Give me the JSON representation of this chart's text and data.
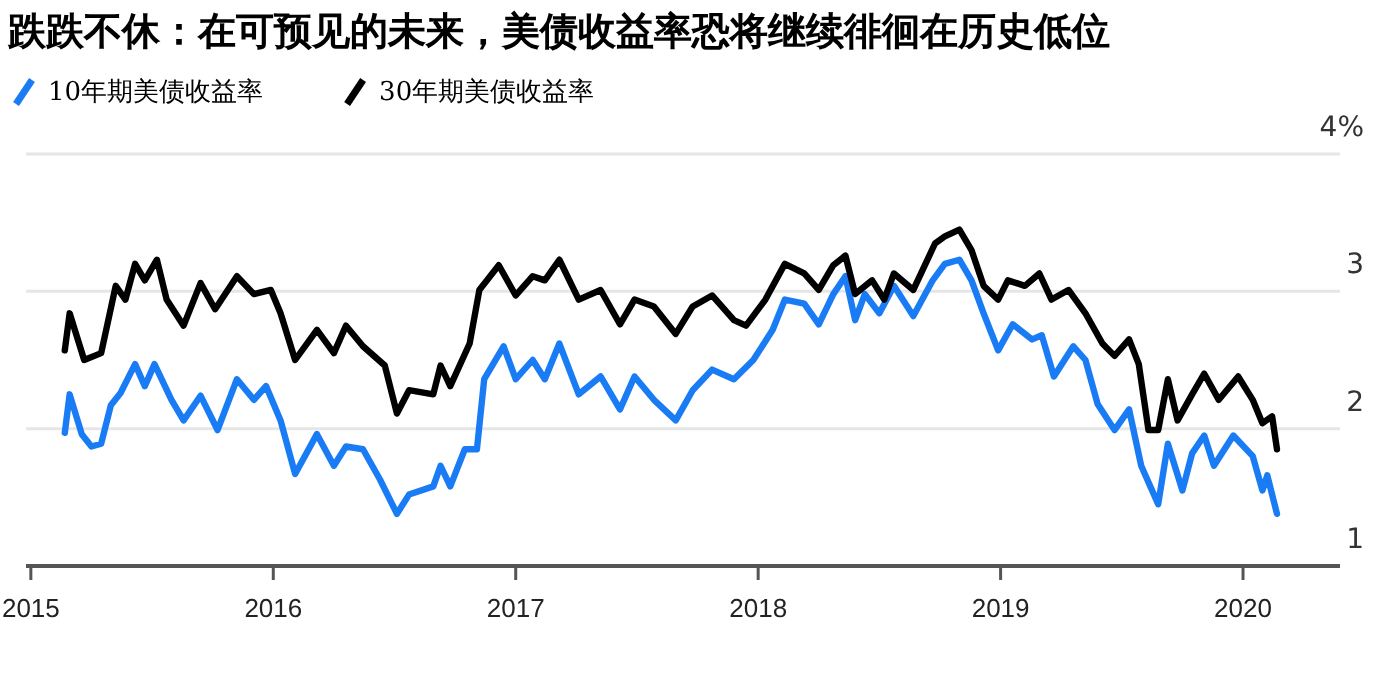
{
  "chart_data": {
    "type": "line",
    "title": "跌跌不休：在可预见的未来，美债收益率恐将继续徘徊在历史低位",
    "xlim": [
      2014.98,
      2020.4
    ],
    "xticks": [
      2015,
      2016,
      2017,
      2018,
      2019,
      2020
    ],
    "ylim": [
      1,
      4
    ],
    "yticks": [
      1,
      2,
      3,
      {
        "value": 4,
        "label": "4%"
      }
    ],
    "grid": "y",
    "legend": "top left",
    "marker": "none",
    "line_style": "solid",
    "series": [
      {
        "name": "10年期美债收益率",
        "color": "#1a7cf5",
        "x": [
          2015.14,
          2015.16,
          2015.21,
          2015.25,
          2015.29,
          2015.33,
          2015.37,
          2015.43,
          2015.47,
          2015.51,
          2015.58,
          2015.63,
          2015.7,
          2015.77,
          2015.85,
          2015.92,
          2015.97,
          2016.03,
          2016.09,
          2016.18,
          2016.25,
          2016.3,
          2016.37,
          2016.44,
          2016.51,
          2016.56,
          2016.66,
          2016.69,
          2016.73,
          2016.79,
          2016.84,
          2016.87,
          2016.95,
          2017.0,
          2017.07,
          2017.12,
          2017.18,
          2017.26,
          2017.35,
          2017.43,
          2017.49,
          2017.57,
          2017.66,
          2017.73,
          2017.81,
          2017.9,
          2017.98,
          2018.06,
          2018.11,
          2018.19,
          2018.25,
          2018.31,
          2018.36,
          2018.4,
          2018.44,
          2018.5,
          2018.56,
          2018.64,
          2018.72,
          2018.77,
          2018.83,
          2018.88,
          2018.93,
          2018.99,
          2019.05,
          2019.13,
          2019.17,
          2019.22,
          2019.3,
          2019.35,
          2019.4,
          2019.47,
          2019.53,
          2019.58,
          2019.65,
          2019.69,
          2019.75,
          2019.79,
          2019.84,
          2019.88,
          2019.96,
          2020.04,
          2020.08,
          2020.1,
          2020.14
        ],
        "values": [
          1.97,
          2.25,
          1.96,
          1.87,
          1.89,
          2.17,
          2.26,
          2.47,
          2.31,
          2.47,
          2.21,
          2.06,
          2.24,
          1.99,
          2.36,
          2.21,
          2.31,
          2.06,
          1.67,
          1.96,
          1.73,
          1.87,
          1.85,
          1.63,
          1.38,
          1.52,
          1.58,
          1.73,
          1.58,
          1.85,
          1.85,
          2.36,
          2.6,
          2.36,
          2.5,
          2.36,
          2.62,
          2.25,
          2.38,
          2.14,
          2.38,
          2.21,
          2.06,
          2.28,
          2.43,
          2.36,
          2.5,
          2.72,
          2.94,
          2.91,
          2.76,
          2.98,
          3.11,
          2.79,
          2.98,
          2.84,
          3.04,
          2.82,
          3.08,
          3.2,
          3.23,
          3.08,
          2.84,
          2.57,
          2.76,
          2.65,
          2.68,
          2.38,
          2.6,
          2.5,
          2.18,
          1.99,
          2.14,
          1.73,
          1.45,
          1.89,
          1.55,
          1.82,
          1.95,
          1.73,
          1.95,
          1.8,
          1.55,
          1.66,
          1.38
        ]
      },
      {
        "name": "30年期美债收益率",
        "color": "#000000",
        "x": [
          2015.14,
          2015.16,
          2015.22,
          2015.29,
          2015.35,
          2015.39,
          2015.43,
          2015.47,
          2015.52,
          2015.56,
          2015.63,
          2015.7,
          2015.76,
          2015.85,
          2015.92,
          2015.99,
          2016.03,
          2016.09,
          2016.18,
          2016.25,
          2016.3,
          2016.37,
          2016.46,
          2016.51,
          2016.56,
          2016.66,
          2016.69,
          2016.73,
          2016.81,
          2016.85,
          2016.93,
          2017.0,
          2017.07,
          2017.12,
          2017.18,
          2017.26,
          2017.35,
          2017.43,
          2017.49,
          2017.57,
          2017.66,
          2017.73,
          2017.81,
          2017.9,
          2017.95,
          2018.03,
          2018.11,
          2018.19,
          2018.25,
          2018.31,
          2018.36,
          2018.4,
          2018.47,
          2018.52,
          2018.56,
          2018.64,
          2018.73,
          2018.77,
          2018.83,
          2018.88,
          2018.93,
          2018.99,
          2019.03,
          2019.1,
          2019.16,
          2019.21,
          2019.28,
          2019.35,
          2019.42,
          2019.47,
          2019.53,
          2019.57,
          2019.61,
          2019.65,
          2019.69,
          2019.73,
          2019.79,
          2019.84,
          2019.9,
          2019.98,
          2020.04,
          2020.08,
          2020.12,
          2020.14
        ],
        "values": [
          2.57,
          2.84,
          2.5,
          2.55,
          3.04,
          2.94,
          3.2,
          3.08,
          3.23,
          2.94,
          2.75,
          3.06,
          2.87,
          3.11,
          2.98,
          3.01,
          2.84,
          2.5,
          2.72,
          2.55,
          2.75,
          2.6,
          2.46,
          2.11,
          2.28,
          2.25,
          2.46,
          2.31,
          2.62,
          3.01,
          3.19,
          2.97,
          3.11,
          3.08,
          3.23,
          2.94,
          3.01,
          2.76,
          2.94,
          2.89,
          2.69,
          2.89,
          2.97,
          2.79,
          2.75,
          2.94,
          3.2,
          3.13,
          3.01,
          3.19,
          3.26,
          2.98,
          3.08,
          2.94,
          3.13,
          3.01,
          3.35,
          3.4,
          3.45,
          3.3,
          3.04,
          2.94,
          3.08,
          3.04,
          3.13,
          2.94,
          3.01,
          2.84,
          2.62,
          2.53,
          2.65,
          2.47,
          1.99,
          1.99,
          2.36,
          2.06,
          2.25,
          2.4,
          2.21,
          2.38,
          2.21,
          2.04,
          2.09,
          1.85
        ]
      }
    ]
  }
}
